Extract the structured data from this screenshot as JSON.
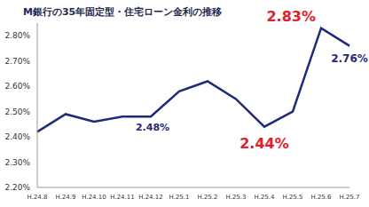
{
  "chart_data": {
    "type": "line",
    "title": "M銀行の35年固定型・住宅ローン金利の推移",
    "categories": [
      "H.24.8",
      "H.24.9",
      "H.24.10",
      "H.24.11",
      "H.24.12",
      "H.25.1",
      "H.25.2",
      "H.25.3",
      "H.25.4",
      "H.25.5",
      "H.25.6",
      "H.25.7"
    ],
    "values": [
      2.42,
      2.49,
      2.46,
      2.48,
      2.48,
      2.58,
      2.62,
      2.55,
      2.44,
      2.5,
      2.83,
      2.76
    ],
    "color": "#1f2a78",
    "ylim": [
      2.2,
      2.85
    ],
    "yticks": [
      {
        "value": 2.2,
        "label": "2.20%"
      },
      {
        "value": 2.3,
        "label": "2.30%"
      },
      {
        "value": 2.4,
        "label": "2.40%"
      },
      {
        "value": 2.5,
        "label": "2.50%"
      },
      {
        "value": 2.6,
        "label": "2.60%"
      },
      {
        "value": 2.7,
        "label": "2.70%"
      },
      {
        "value": 2.8,
        "label": "2.80%"
      }
    ],
    "grid": false,
    "annotations": [
      {
        "label": "2.48%",
        "category": "H.24.12",
        "value": 2.48,
        "color": "#1f2a78"
      },
      {
        "label": "2.44%",
        "category": "H.25.4",
        "value": 2.44,
        "color": "#e0202a"
      },
      {
        "label": "2.83%",
        "category": "H.25.6",
        "value": 2.83,
        "color": "#e0202a"
      },
      {
        "label": "2.76%",
        "category": "H.25.7",
        "value": 2.76,
        "color": "#1f2a78"
      }
    ]
  }
}
